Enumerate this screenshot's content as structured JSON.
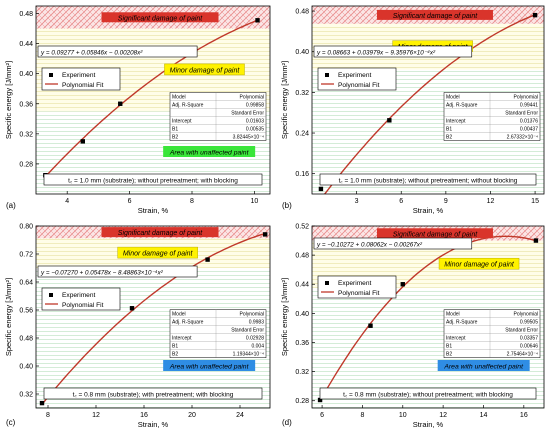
{
  "figure": {
    "colors": {
      "curve": "#c0392b",
      "marker": "#000000",
      "label_significant_bg": "#d9342b",
      "label_minor_bg": "#fff200",
      "label_unaffected_green": "#39e639",
      "label_unaffected_blue": "#2f8de4",
      "hatch": "#e88a8a",
      "band_grid": "#9fd3a7"
    }
  },
  "chart_data": [
    {
      "id": "a",
      "type": "scatter",
      "panel_label": "(a)",
      "xlabel": "Strain, %",
      "ylabel": "Specific energy [J/mm²]",
      "xlim": [
        3,
        10.5
      ],
      "ylim": [
        0.24,
        0.49
      ],
      "xticks": [
        "4",
        "6",
        "8",
        "10"
      ],
      "yticks": [
        "0.28",
        "0.32",
        "0.36",
        "0.40",
        "0.44",
        "0.48"
      ],
      "series": [
        {
          "name": "Experiment",
          "kind": "points",
          "x": [
            3.3,
            4.5,
            5.7,
            10.1
          ],
          "y": [
            0.265,
            0.31,
            0.36,
            0.471
          ]
        },
        {
          "name": "Polynomial Fit",
          "kind": "curve",
          "poly": [
            0.09277,
            0.05846,
            -0.00208
          ],
          "x_range": [
            3.3,
            10.1
          ]
        }
      ],
      "equation": "y = 0.09277 + 0.05846x − 0.00208x²",
      "zones": {
        "significant": [
          0.46,
          0.49
        ],
        "minor": [
          0.35,
          0.46
        ],
        "unaffected": [
          0.24,
          0.35
        ]
      },
      "zone_labels": {
        "significant": "Significant damage of paint",
        "minor": "Minor damage of paint",
        "unaffected": "Area with unaffected paint"
      },
      "unaffected_style": "green",
      "condition": "t꜀ = 1.0 mm (substrate); without pretreatment; with blocking",
      "stats": {
        "model": "Polynomial",
        "adj_r2": "0.99858",
        "intercept": "0.01603",
        "b1": "0.00535",
        "b2": "3.82445×10⁻⁴"
      }
    },
    {
      "id": "b",
      "type": "scatter",
      "panel_label": "(b)",
      "xlabel": "Strain, %",
      "ylabel": "Specific energy [J/mm²]",
      "xlim": [
        0,
        15.6
      ],
      "ylim": [
        0.12,
        0.49
      ],
      "xticks": [
        "3",
        "6",
        "9",
        "12",
        "15"
      ],
      "yticks": [
        "0.16",
        "0.24",
        "0.32",
        "0.40",
        "0.48"
      ],
      "series": [
        {
          "name": "Experiment",
          "kind": "points",
          "x": [
            0.6,
            5.2,
            10.6,
            15.0
          ],
          "y": [
            0.13,
            0.265,
            0.413,
            0.472
          ]
        },
        {
          "name": "Polynomial Fit",
          "kind": "curve",
          "poly": [
            0.08663,
            0.03979,
            -0.000936
          ],
          "x_range": [
            0.6,
            15.0
          ]
        }
      ],
      "equation": "y = 0.08663 + 0.03979x − 9.35976×10⁻⁴x²",
      "zones": {
        "significant": [
          0.455,
          0.49
        ],
        "minor": [
          0.365,
          0.455
        ],
        "unaffected": [
          0.12,
          0.365
        ]
      },
      "zone_labels": {
        "significant": "Significant damage of paint",
        "minor": "Minor damage of paint",
        "unaffected": ""
      },
      "unaffected_style": "none",
      "condition": "t꜀ = 1.0 mm (substrate); without pretreatment; without blocking",
      "stats": {
        "model": "Polynomial",
        "adj_r2": "0.99441",
        "intercept": "0.01376",
        "b1": "0.00437",
        "b2": "2.67332×10⁻⁴"
      }
    },
    {
      "id": "c",
      "type": "scatter",
      "panel_label": "(c)",
      "xlabel": "Strain, %",
      "ylabel": "Specific energy [J/mm²]",
      "xlim": [
        7,
        26.5
      ],
      "ylim": [
        0.28,
        0.8
      ],
      "xticks": [
        "8",
        "12",
        "16",
        "20",
        "24"
      ],
      "yticks": [
        "0.32",
        "0.40",
        "0.48",
        "0.56",
        "0.64",
        "0.72",
        "0.80"
      ],
      "series": [
        {
          "name": "Experiment",
          "kind": "points",
          "x": [
            7.5,
            15.0,
            21.3,
            26.1
          ],
          "y": [
            0.294,
            0.565,
            0.704,
            0.776
          ]
        },
        {
          "name": "Polynomial Fit",
          "kind": "curve",
          "poly": [
            -0.0727,
            0.05478,
            -0.000849
          ],
          "x_range": [
            7.5,
            26.1
          ]
        }
      ],
      "equation": "y = −0.07270 + 0.05478x − 8.48863×10⁻⁴x²",
      "zones": {
        "significant": [
          0.765,
          0.8
        ],
        "minor": [
          0.68,
          0.765
        ],
        "unaffected": [
          0.28,
          0.68
        ]
      },
      "zone_labels": {
        "significant": "Significant damage of paint",
        "minor": "Minor damage of paint",
        "unaffected": "Area with unaffected paint"
      },
      "unaffected_style": "blue",
      "condition": "t꜀ = 0.8 mm (substrate); with pretreatment; with blocking",
      "stats": {
        "model": "Polynomial",
        "adj_r2": "0.9983",
        "intercept": "0.02928",
        "b1": "0.004",
        "b2": "1.19344×10⁻⁴"
      }
    },
    {
      "id": "d",
      "type": "scatter",
      "panel_label": "(d)",
      "xlabel": "Strain, %",
      "ylabel": "Specific energy [J/mm²]",
      "xlim": [
        5.5,
        17
      ],
      "ylim": [
        0.27,
        0.52
      ],
      "xticks": [
        "6",
        "8",
        "10",
        "12",
        "14",
        "16"
      ],
      "yticks": [
        "0.28",
        "0.32",
        "0.36",
        "0.40",
        "0.44",
        "0.48",
        "0.52"
      ],
      "series": [
        {
          "name": "Experiment",
          "kind": "points",
          "x": [
            5.9,
            8.4,
            10.0,
            16.6
          ],
          "y": [
            0.281,
            0.383,
            0.44,
            0.5
          ]
        },
        {
          "name": "Polynomial Fit",
          "kind": "curve",
          "poly": [
            -0.10272,
            0.08062,
            -0.00267
          ],
          "x_range": [
            5.9,
            16.6
          ]
        }
      ],
      "equation": "y = −0.10272 + 0.08062x − 0.00267x²",
      "zones": {
        "significant": [
          0.5,
          0.52
        ],
        "minor": [
          0.435,
          0.5
        ],
        "unaffected": [
          0.27,
          0.435
        ]
      },
      "zone_labels": {
        "significant": "Significant damage of paint",
        "minor": "Minor damage of paint",
        "unaffected": "Area with unaffected paint"
      },
      "unaffected_style": "blue",
      "condition": "t꜀ = 0.8 mm (substrate); without pretreatment; with blocking",
      "stats": {
        "model": "Polynomial",
        "adj_r2": "0.99505",
        "intercept": "0.03357",
        "b1": "0.00646",
        "b2": "2.75464×10⁻⁴"
      }
    }
  ]
}
